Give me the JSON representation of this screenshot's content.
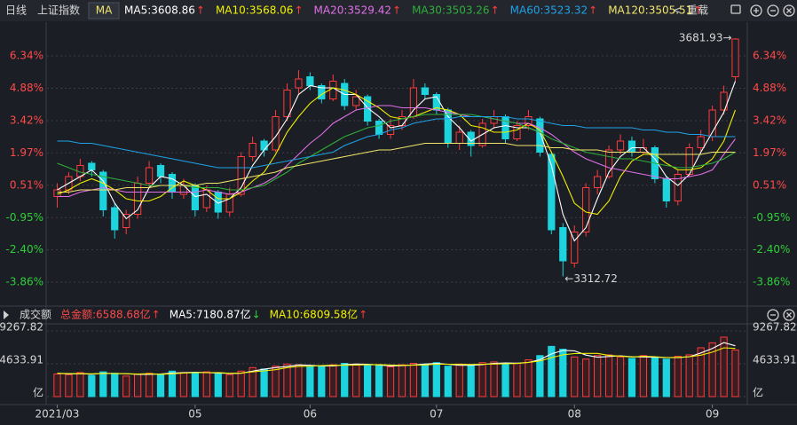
{
  "header": {
    "period": "日线",
    "symbol": "上证指数",
    "indicator": "MA",
    "reload": "重载"
  },
  "chart_data": [
    {
      "type": "candlestick",
      "up_color": "#ff3b3b",
      "down_color": "#1cd3de",
      "grid": true,
      "ylim": [
        -4.86,
        7.74
      ],
      "yticks": [
        {
          "value": 6.34,
          "label": "6.34%"
        },
        {
          "value": 4.88,
          "label": "4.88%"
        },
        {
          "value": 3.42,
          "label": "3.42%"
        },
        {
          "value": 1.97,
          "label": "1.97%"
        },
        {
          "value": 0.51,
          "label": "0.51%"
        },
        {
          "value": -0.95,
          "label": "-0.95%"
        },
        {
          "value": -2.4,
          "label": "-2.40%"
        },
        {
          "value": -3.86,
          "label": "-3.86%"
        }
      ],
      "high_label": "3681.93→",
      "low_label": "←3312.72",
      "candles": [
        [
          0.0,
          0.6,
          -0.5,
          0.3
        ],
        [
          0.3,
          1.1,
          0.1,
          0.9
        ],
        [
          0.9,
          1.7,
          0.7,
          1.4
        ],
        [
          1.5,
          1.6,
          0.9,
          1.2
        ],
        [
          1.1,
          1.2,
          -0.9,
          -0.6
        ],
        [
          -0.5,
          -0.3,
          -1.9,
          -1.5
        ],
        [
          -1.4,
          -0.6,
          -1.7,
          -0.8
        ],
        [
          -0.8,
          0.9,
          -1.0,
          0.6
        ],
        [
          0.6,
          1.6,
          0.4,
          1.3
        ],
        [
          1.4,
          1.5,
          0.6,
          0.9
        ],
        [
          1.0,
          1.1,
          -0.1,
          0.2
        ],
        [
          0.1,
          0.8,
          -0.1,
          0.5
        ],
        [
          0.5,
          0.6,
          -0.9,
          -0.6
        ],
        [
          -0.5,
          0.5,
          -0.7,
          0.3
        ],
        [
          0.2,
          0.3,
          -1.0,
          -0.7
        ],
        [
          -0.7,
          0.4,
          -0.9,
          0.1
        ],
        [
          0.1,
          2.0,
          0.0,
          1.8
        ],
        [
          1.8,
          2.7,
          1.6,
          2.4
        ],
        [
          2.5,
          2.6,
          1.8,
          2.1
        ],
        [
          2.1,
          3.9,
          2.0,
          3.6
        ],
        [
          3.6,
          5.1,
          3.4,
          4.8
        ],
        [
          4.9,
          5.7,
          4.6,
          5.3
        ],
        [
          5.4,
          5.6,
          4.8,
          5.0
        ],
        [
          5.0,
          5.1,
          4.2,
          4.4
        ],
        [
          4.4,
          5.5,
          4.3,
          5.2
        ],
        [
          5.1,
          5.3,
          3.9,
          4.1
        ],
        [
          4.1,
          4.8,
          3.9,
          4.5
        ],
        [
          4.5,
          4.6,
          3.2,
          3.4
        ],
        [
          3.4,
          3.5,
          2.6,
          2.8
        ],
        [
          2.8,
          3.5,
          2.6,
          3.2
        ],
        [
          3.2,
          3.9,
          3.0,
          3.6
        ],
        [
          3.6,
          5.3,
          3.5,
          4.9
        ],
        [
          4.9,
          5.1,
          4.4,
          4.6
        ],
        [
          4.6,
          4.7,
          3.7,
          3.9
        ],
        [
          3.9,
          4.0,
          2.2,
          2.4
        ],
        [
          2.4,
          3.2,
          2.1,
          2.9
        ],
        [
          2.9,
          3.0,
          1.8,
          2.3
        ],
        [
          2.3,
          3.5,
          2.2,
          3.3
        ],
        [
          3.3,
          3.9,
          3.1,
          3.6
        ],
        [
          3.6,
          3.7,
          2.4,
          2.6
        ],
        [
          2.6,
          3.4,
          2.5,
          3.2
        ],
        [
          3.2,
          3.9,
          3.0,
          3.6
        ],
        [
          3.5,
          3.6,
          1.8,
          2.0
        ],
        [
          1.9,
          2.0,
          -1.7,
          -1.5
        ],
        [
          -1.4,
          -1.2,
          -3.6,
          -2.9
        ],
        [
          -3.0,
          -1.3,
          -3.2,
          -1.6
        ],
        [
          -1.6,
          0.6,
          -1.8,
          0.4
        ],
        [
          0.4,
          1.2,
          0.1,
          0.9
        ],
        [
          0.9,
          2.3,
          0.8,
          2.1
        ],
        [
          2.1,
          2.8,
          1.9,
          2.5
        ],
        [
          2.5,
          2.7,
          1.8,
          2.0
        ],
        [
          2.0,
          2.6,
          1.9,
          2.2
        ],
        [
          2.2,
          2.3,
          0.6,
          0.8
        ],
        [
          0.8,
          0.9,
          -0.5,
          -0.2
        ],
        [
          -0.2,
          1.2,
          -0.4,
          1.0
        ],
        [
          1.0,
          2.4,
          0.9,
          2.2
        ],
        [
          2.2,
          3.0,
          2.0,
          2.7
        ],
        [
          2.7,
          4.1,
          2.5,
          3.9
        ],
        [
          3.9,
          5.0,
          3.7,
          4.7
        ],
        [
          5.4,
          7.14,
          5.2,
          7.1
        ]
      ],
      "series": [
        {
          "name": "MA5:3608.86",
          "trend": "↑",
          "color": "#ffffff",
          "values": [
            0.3,
            0.6,
            0.9,
            1.2,
            0.7,
            -0.3,
            -1.0,
            -0.6,
            0.4,
            0.9,
            0.8,
            0.5,
            0.0,
            0.1,
            -0.3,
            -0.1,
            0.4,
            1.4,
            2.1,
            2.7,
            3.5,
            4.6,
            5.0,
            4.9,
            4.9,
            4.6,
            4.6,
            4.0,
            3.6,
            3.1,
            3.2,
            3.9,
            4.4,
            4.5,
            3.6,
            3.1,
            2.5,
            2.8,
            3.1,
            3.2,
            3.1,
            3.1,
            2.9,
            1.4,
            -0.8,
            -2.0,
            -1.4,
            -0.1,
            1.1,
            1.8,
            2.2,
            2.2,
            1.7,
            0.9,
            0.5,
            1.0,
            2.0,
            2.9,
            3.8,
            5.2
          ]
        },
        {
          "name": "MA10:3568.06",
          "trend": "↑",
          "color": "#f0f000",
          "values": [
            0.1,
            0.3,
            0.6,
            0.8,
            0.6,
            0.3,
            -0.1,
            -0.2,
            -0.2,
            0.0,
            0.4,
            0.7,
            0.5,
            0.3,
            -0.1,
            -0.1,
            0.2,
            0.7,
            1.1,
            1.9,
            2.9,
            3.6,
            4.2,
            4.6,
            4.9,
            4.8,
            4.6,
            4.3,
            4.0,
            3.6,
            3.5,
            3.6,
            3.8,
            4.0,
            3.9,
            3.7,
            3.2,
            3.1,
            2.9,
            2.9,
            3.0,
            3.3,
            3.0,
            2.0,
            0.9,
            -0.3,
            -0.7,
            -0.8,
            -0.2,
            0.9,
            1.6,
            1.9,
            1.9,
            1.5,
            1.2,
            1.2,
            1.3,
            1.7,
            2.5,
            3.9
          ]
        },
        {
          "name": "MA20:3529.42",
          "trend": "↑",
          "color": "#e070e8",
          "values": [
            0.0,
            0.0,
            0.2,
            0.3,
            0.4,
            0.3,
            0.2,
            0.2,
            0.2,
            0.2,
            0.2,
            0.2,
            0.2,
            0.3,
            0.2,
            0.1,
            0.2,
            0.4,
            0.6,
            0.9,
            1.4,
            1.9,
            2.4,
            2.8,
            3.3,
            3.6,
            3.9,
            4.0,
            4.1,
            4.1,
            4.0,
            4.0,
            4.0,
            3.9,
            3.8,
            3.7,
            3.6,
            3.6,
            3.5,
            3.4,
            3.3,
            3.3,
            3.1,
            2.8,
            2.4,
            2.0,
            1.7,
            1.5,
            1.3,
            1.2,
            1.1,
            1.0,
            0.9,
            0.8,
            0.8,
            0.9,
            1.0,
            1.2,
            1.9,
            2.6
          ]
        },
        {
          "name": "MA30:3503.26",
          "trend": "↑",
          "color": "#2fae3a",
          "values": [
            1.5,
            1.3,
            1.1,
            1.0,
            0.9,
            0.8,
            0.7,
            0.6,
            0.5,
            0.5,
            0.5,
            0.5,
            0.4,
            0.4,
            0.4,
            0.3,
            0.3,
            0.4,
            0.5,
            0.8,
            1.1,
            1.5,
            1.8,
            2.1,
            2.4,
            2.7,
            2.9,
            3.1,
            3.2,
            3.4,
            3.5,
            3.6,
            3.7,
            3.7,
            3.7,
            3.7,
            3.7,
            3.6,
            3.5,
            3.4,
            3.3,
            3.1,
            2.9,
            2.6,
            2.4,
            2.2,
            2.0,
            1.9,
            1.8,
            1.7,
            1.7,
            1.6,
            1.5,
            1.4,
            1.3,
            1.3,
            1.4,
            1.5,
            1.7,
            2.0
          ]
        },
        {
          "name": "MA60:3523.32",
          "trend": "↑",
          "color": "#1ea2e6",
          "values": [
            2.5,
            2.5,
            2.4,
            2.4,
            2.3,
            2.2,
            2.1,
            2.0,
            1.9,
            1.8,
            1.7,
            1.6,
            1.5,
            1.4,
            1.3,
            1.3,
            1.3,
            1.3,
            1.4,
            1.5,
            1.6,
            1.7,
            1.8,
            1.9,
            2.0,
            2.3,
            2.5,
            2.7,
            2.8,
            3.0,
            3.1,
            3.3,
            3.4,
            3.5,
            3.5,
            3.6,
            3.6,
            3.6,
            3.6,
            3.6,
            3.5,
            3.5,
            3.4,
            3.3,
            3.2,
            3.2,
            3.1,
            3.1,
            3.1,
            3.1,
            3.1,
            3.0,
            3.0,
            2.9,
            2.9,
            2.8,
            2.8,
            2.7,
            2.7,
            2.7
          ]
        },
        {
          "name": "MA120:3505.51",
          "trend": "↑",
          "color": "#f2e56a",
          "values": [
            0.2,
            0.2,
            0.3,
            0.3,
            0.3,
            0.3,
            0.4,
            0.4,
            0.4,
            0.5,
            0.5,
            0.5,
            0.5,
            0.6,
            0.6,
            0.7,
            0.8,
            0.9,
            1.0,
            1.1,
            1.3,
            1.4,
            1.5,
            1.6,
            1.7,
            1.8,
            1.9,
            2.0,
            2.1,
            2.1,
            2.2,
            2.3,
            2.4,
            2.4,
            2.4,
            2.4,
            2.4,
            2.4,
            2.4,
            2.4,
            2.3,
            2.3,
            2.3,
            2.2,
            2.2,
            2.1,
            2.1,
            2.1,
            2.0,
            2.0,
            2.0,
            2.0,
            1.9,
            1.9,
            1.9,
            1.9,
            1.9,
            2.0,
            2.0,
            2.0
          ]
        }
      ]
    },
    {
      "type": "bar",
      "title": "成交额",
      "summary": "总金额:6588.68亿",
      "summary_trend": "↑",
      "ylim": [
        0,
        10030
      ],
      "yticks": [
        9267.82,
        4633.91,
        {
          "value": 0,
          "label": "亿"
        }
      ],
      "categories": [
        "2021/03",
        null,
        null,
        null,
        null,
        null,
        null,
        null,
        null,
        null,
        null,
        null,
        "05",
        null,
        null,
        null,
        null,
        null,
        null,
        null,
        null,
        null,
        "06",
        null,
        null,
        null,
        null,
        null,
        null,
        null,
        null,
        null,
        null,
        "07",
        null,
        null,
        null,
        null,
        null,
        null,
        null,
        null,
        null,
        null,
        null,
        "08",
        null,
        null,
        null,
        null,
        null,
        null,
        null,
        null,
        null,
        null,
        null,
        "09",
        null,
        null
      ],
      "values": [
        3200,
        3100,
        3400,
        3000,
        3500,
        3300,
        2900,
        3200,
        3300,
        3100,
        3600,
        3400,
        3300,
        3500,
        3200,
        3100,
        3600,
        4100,
        3900,
        4300,
        4600,
        4500,
        4200,
        4300,
        4500,
        4700,
        4600,
        4400,
        4400,
        4200,
        4500,
        4700,
        4600,
        4800,
        4300,
        4600,
        4400,
        4800,
        4900,
        4600,
        4700,
        5200,
        5800,
        7100,
        6700,
        5600,
        5300,
        5800,
        5900,
        5600,
        5400,
        5800,
        5500,
        5300,
        5700,
        5900,
        6900,
        7600,
        8400,
        6588.68
      ],
      "series": [
        {
          "name": "MA5:7180.87亿",
          "trend": "↓",
          "color": "#ffffff",
          "values": [
            3300,
            3200,
            3230,
            3170,
            3300,
            3270,
            3230,
            3130,
            3130,
            3200,
            3330,
            3370,
            3430,
            3400,
            3330,
            3270,
            3300,
            3600,
            3870,
            4100,
            4270,
            4470,
            4430,
            4330,
            4330,
            4500,
            4600,
            4570,
            4470,
            4330,
            4370,
            4470,
            4600,
            4700,
            4570,
            4430,
            4430,
            4530,
            4700,
            4770,
            4730,
            4830,
            5230,
            6030,
            6530,
            6470,
            5870,
            5570,
            5670,
            5770,
            5630,
            5600,
            5570,
            5530,
            5500,
            5630,
            6170,
            6800,
            7630,
            7180.87
          ]
        },
        {
          "name": "MA10:6809.58亿",
          "trend": "↑",
          "color": "#f0f000",
          "values": [
            3300,
            3250,
            3250,
            3220,
            3250,
            3260,
            3240,
            3180,
            3240,
            3160,
            3220,
            3320,
            3380,
            3380,
            3400,
            3300,
            3340,
            3500,
            3640,
            3800,
            4100,
            4280,
            4300,
            4380,
            4420,
            4440,
            4460,
            4500,
            4520,
            4460,
            4420,
            4440,
            4480,
            4580,
            4580,
            4560,
            4540,
            4580,
            4600,
            4640,
            4680,
            4840,
            5040,
            5500,
            5900,
            6080,
            6100,
            6100,
            5820,
            5720,
            5600,
            5700,
            5640,
            5520,
            5540,
            5640,
            5860,
            6280,
            6900,
            6809.58
          ]
        }
      ]
    }
  ]
}
